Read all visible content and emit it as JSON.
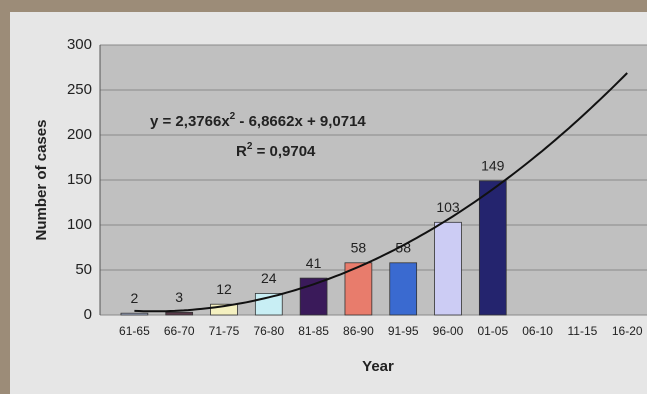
{
  "chart_data": {
    "type": "bar",
    "x_label": "Year",
    "y_label": "Number of cases",
    "categories": [
      "61-65",
      "66-70",
      "71-75",
      "76-80",
      "81-85",
      "86-90",
      "91-95",
      "96-00",
      "01-05",
      "06-10",
      "11-15",
      "16-20"
    ],
    "values": [
      2,
      3,
      12,
      24,
      41,
      58,
      58,
      103,
      149,
      null,
      null,
      null
    ],
    "colors": [
      "#a8b4d0",
      "#5a3a4a",
      "#f4f0c0",
      "#c8eef4",
      "#3a1a5a",
      "#e87c6c",
      "#3a6ad0",
      "#ccccf4",
      "#24246e",
      "#888888",
      "#888888",
      "#888888"
    ],
    "ylim": [
      0,
      300
    ],
    "yticks": [
      0,
      50,
      100,
      150,
      200,
      250,
      300
    ],
    "grid": true,
    "trendline": {
      "coefficients": [
        2.3766,
        -6.8662,
        9.0714
      ],
      "equation_parts": [
        "y = 2,3766x",
        "2",
        " - 6,8662x + 9,0714"
      ],
      "r2_parts": [
        "R",
        "2",
        " = 0,9704"
      ]
    }
  }
}
